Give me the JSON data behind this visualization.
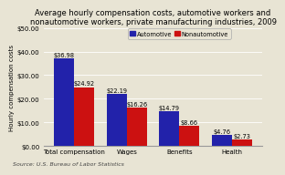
{
  "title": "Average hourly compensation costs, automotive workers and\nnonautomotive workers, private manufacturing industries, 2009",
  "categories": [
    "Total compensation",
    "Wages",
    "Benefits",
    "Health"
  ],
  "automotive": [
    36.98,
    22.19,
    14.79,
    4.76
  ],
  "nonautomotive": [
    24.92,
    16.26,
    8.66,
    2.73
  ],
  "auto_labels": [
    "$36.98",
    "$22.19",
    "$14.79",
    "$4.76"
  ],
  "nonauto_labels": [
    "$24.92",
    "$16.26",
    "$8.66",
    "$2.73"
  ],
  "auto_color": "#2222aa",
  "nonauto_color": "#cc1111",
  "ylabel": "Hourly compensation costs",
  "ylim": [
    0,
    50
  ],
  "yticks": [
    0,
    10,
    20,
    30,
    40,
    50
  ],
  "ytick_labels": [
    "$0.00",
    "$10.00",
    "$20.00",
    "$30.00",
    "$40.00",
    "$50.00"
  ],
  "source": "Source: U.S. Bureau of Labor Statistics",
  "legend_labels": [
    "Automotive",
    "Nonautomotive"
  ],
  "title_fontsize": 6.0,
  "label_fontsize": 4.8,
  "axis_fontsize": 5.0,
  "source_fontsize": 4.5,
  "bar_width": 0.38,
  "background_color": "#e8e4d4"
}
